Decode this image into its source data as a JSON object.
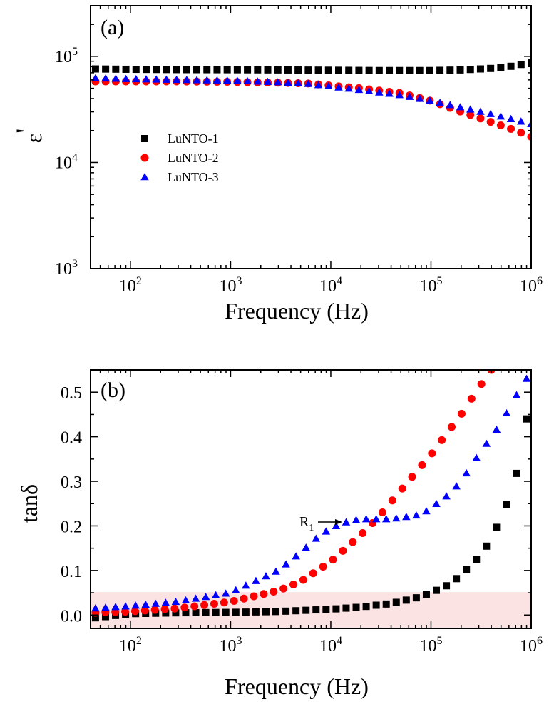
{
  "chart_data": [
    {
      "panel_label": "(a)",
      "type": "scatter",
      "x_scale": "log",
      "y_scale": "log",
      "xlim": [
        40,
        1000000
      ],
      "ylim": [
        1000,
        300000
      ],
      "x_ticks": [
        {
          "v": 100,
          "m": "10",
          "e": "2"
        },
        {
          "v": 1000,
          "m": "10",
          "e": "3"
        },
        {
          "v": 10000,
          "m": "10",
          "e": "4"
        },
        {
          "v": 100000,
          "m": "10",
          "e": "5"
        },
        {
          "v": 1000000,
          "m": "10",
          "e": "6"
        }
      ],
      "y_ticks": [
        {
          "v": 1000,
          "m": "10",
          "e": "3"
        },
        {
          "v": 10000,
          "m": "10",
          "e": "4"
        },
        {
          "v": 100000,
          "m": "10",
          "e": "5"
        }
      ],
      "xlabel": "Frequency (Hz)",
      "ylabel_symbol": "ε",
      "ylabel_prime": "'",
      "legend_position": "left-middle",
      "legend": [
        {
          "name": "LuNTO-1",
          "marker": "square",
          "color": "#000000"
        },
        {
          "name": "LuNTO-2",
          "marker": "circle",
          "color": "#ff0000"
        },
        {
          "name": "LuNTO-3",
          "marker": "triangle",
          "color": "#0000ff"
        }
      ],
      "series": [
        {
          "name": "LuNTO-1",
          "marker": "square",
          "color": "#000000",
          "points": [
            [
              50,
              76000
            ],
            [
              100,
              75500
            ],
            [
              300,
              75000
            ],
            [
              1000,
              74800
            ],
            [
              3000,
              74500
            ],
            [
              10000,
              74000
            ],
            [
              30000,
              73500
            ],
            [
              100000,
              73500
            ],
            [
              200000,
              74500
            ],
            [
              400000,
              77000
            ],
            [
              600000,
              80000
            ],
            [
              800000,
              84000
            ],
            [
              1000000,
              88000
            ]
          ]
        },
        {
          "name": "LuNTO-2",
          "marker": "circle",
          "color": "#ff0000",
          "points": [
            [
              50,
              58000
            ],
            [
              100,
              58000
            ],
            [
              300,
              58000
            ],
            [
              1000,
              57500
            ],
            [
              3000,
              56500
            ],
            [
              6000,
              55500
            ],
            [
              10000,
              53000
            ],
            [
              20000,
              50000
            ],
            [
              50000,
              45000
            ],
            [
              100000,
              38000
            ],
            [
              200000,
              30000
            ],
            [
              400000,
              24000
            ],
            [
              700000,
              20000
            ],
            [
              1000000,
              17500
            ]
          ]
        },
        {
          "name": "LuNTO-3",
          "marker": "triangle",
          "color": "#0000ff",
          "points": [
            [
              50,
              62000
            ],
            [
              100,
              61000
            ],
            [
              300,
              60000
            ],
            [
              1000,
              59000
            ],
            [
              3000,
              57000
            ],
            [
              6000,
              55000
            ],
            [
              10000,
              52000
            ],
            [
              20000,
              48000
            ],
            [
              50000,
              43000
            ],
            [
              100000,
              38000
            ],
            [
              200000,
              33000
            ],
            [
              400000,
              28500
            ],
            [
              700000,
              25000
            ],
            [
              1000000,
              23000
            ]
          ]
        }
      ]
    },
    {
      "panel_label": "(b)",
      "type": "scatter",
      "x_scale": "log",
      "y_scale": "linear",
      "xlim": [
        40,
        1000000
      ],
      "ylim": [
        -0.03,
        0.55
      ],
      "x_ticks": [
        {
          "v": 100,
          "m": "10",
          "e": "2"
        },
        {
          "v": 1000,
          "m": "10",
          "e": "3"
        },
        {
          "v": 10000,
          "m": "10",
          "e": "4"
        },
        {
          "v": 100000,
          "m": "10",
          "e": "5"
        },
        {
          "v": 1000000,
          "m": "10",
          "e": "6"
        }
      ],
      "y_ticks": [
        {
          "v": 0,
          "t": "0.0"
        },
        {
          "v": 0.1,
          "t": "0.1"
        },
        {
          "v": 0.2,
          "t": "0.2"
        },
        {
          "v": 0.3,
          "t": "0.3"
        },
        {
          "v": 0.4,
          "t": "0.4"
        },
        {
          "v": 0.5,
          "t": "0.5"
        }
      ],
      "xlabel": "Frequency (Hz)",
      "ylabel": "tanδ",
      "shaded_band": {
        "y_from": -0.03,
        "y_to": 0.05,
        "color": "#fbe3e3"
      },
      "annotation": {
        "text": "R",
        "subscript": "1",
        "x": 15000,
        "y": 0.21
      },
      "series": [
        {
          "name": "LuNTO-1",
          "marker": "square",
          "color": "#000000",
          "points": [
            [
              50,
              -0.005
            ],
            [
              100,
              0.003
            ],
            [
              300,
              0.005
            ],
            [
              1000,
              0.006
            ],
            [
              3000,
              0.008
            ],
            [
              10000,
              0.013
            ],
            [
              20000,
              0.018
            ],
            [
              40000,
              0.026
            ],
            [
              70000,
              0.038
            ],
            [
              100000,
              0.05
            ],
            [
              150000,
              0.068
            ],
            [
              200000,
              0.09
            ],
            [
              300000,
              0.13
            ],
            [
              400000,
              0.17
            ],
            [
              500000,
              0.22
            ],
            [
              600000,
              0.26
            ],
            [
              700000,
              0.31
            ],
            [
              800000,
              0.36
            ],
            [
              900000,
              0.44
            ]
          ]
        },
        {
          "name": "LuNTO-2",
          "marker": "circle",
          "color": "#ff0000",
          "points": [
            [
              45,
              0.005
            ],
            [
              100,
              0.008
            ],
            [
              300,
              0.015
            ],
            [
              1000,
              0.03
            ],
            [
              3000,
              0.055
            ],
            [
              5000,
              0.075
            ],
            [
              10000,
              0.12
            ],
            [
              20000,
              0.18
            ],
            [
              30000,
              0.22
            ],
            [
              50000,
              0.28
            ],
            [
              100000,
              0.36
            ],
            [
              200000,
              0.45
            ],
            [
              300000,
              0.51
            ],
            [
              400000,
              0.55
            ]
          ]
        },
        {
          "name": "LuNTO-3",
          "marker": "triangle",
          "color": "#0000ff",
          "points": [
            [
              45,
              0.015
            ],
            [
              100,
              0.02
            ],
            [
              300,
              0.03
            ],
            [
              1000,
              0.05
            ],
            [
              3000,
              0.1
            ],
            [
              5000,
              0.14
            ],
            [
              7000,
              0.17
            ],
            [
              10000,
              0.195
            ],
            [
              15000,
              0.21
            ],
            [
              20000,
              0.215
            ],
            [
              40000,
              0.215
            ],
            [
              80000,
              0.225
            ],
            [
              100000,
              0.24
            ],
            [
              150000,
              0.27
            ],
            [
              200000,
              0.3
            ],
            [
              300000,
              0.36
            ],
            [
              500000,
              0.43
            ],
            [
              700000,
              0.49
            ],
            [
              900000,
              0.53
            ]
          ]
        }
      ]
    }
  ]
}
